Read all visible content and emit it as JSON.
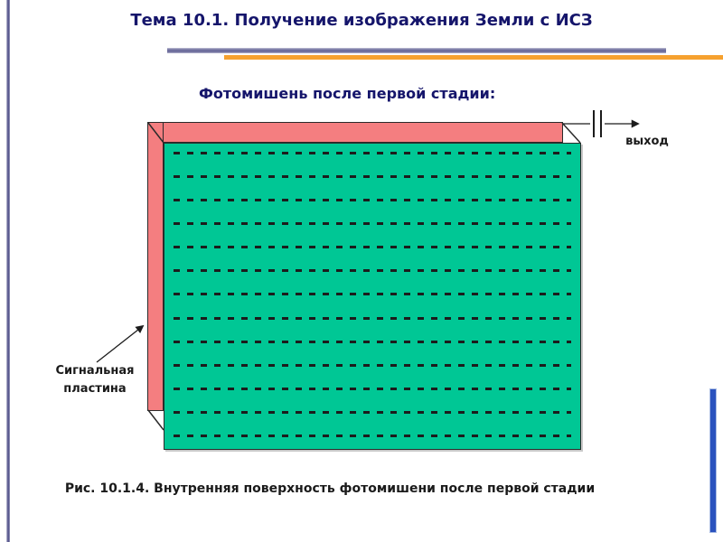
{
  "header": {
    "title": "Тема 10.1. Получение изображения Земли с ИСЗ",
    "title_color": "#15156B",
    "divider_blue_color": "#6E6E9D",
    "divider_orange_color": "#F6A12F"
  },
  "content": {
    "subtitle": "Фотомишень после первой стадии:",
    "caption": "Рис. 10.1.4. Внутренняя поверхность фотомишени после первой стадии"
  },
  "diagram": {
    "output_label": "выход",
    "signal_plate_label_line1": "Сигнальная",
    "signal_plate_label_line2": "пластина",
    "plate_color": "#F47E80",
    "target_color": "#00C795",
    "dash_color": "#1C1C1C",
    "dash_row_count": 13
  },
  "accents": {
    "left_bar_color": "#56568C",
    "right_bar_color": "#2A52BE"
  }
}
